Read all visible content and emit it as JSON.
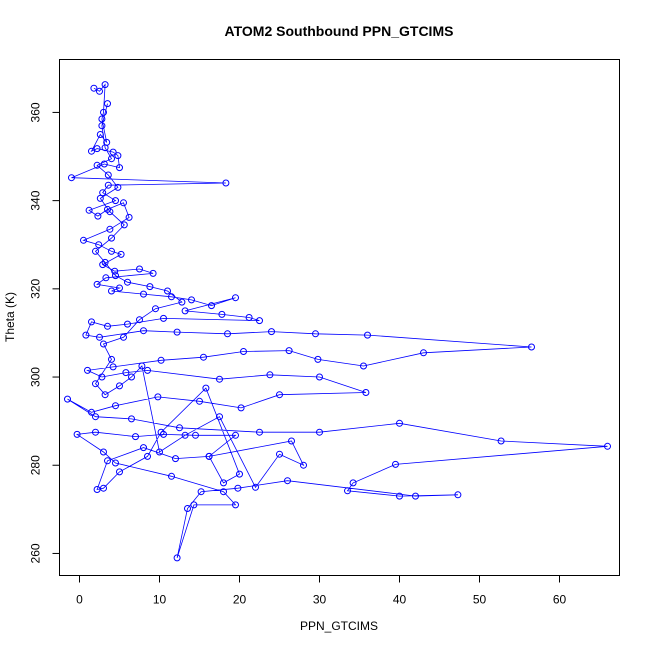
{
  "chart_data": {
    "type": "line",
    "title": "ATOM2 Southbound PPN_GTCIMS",
    "xlabel": "PPN_GTCIMS",
    "ylabel": "Theta (K)",
    "xlim": [
      -2.5,
      67.5
    ],
    "ylim": [
      255,
      372
    ],
    "x_ticks": [
      0,
      10,
      20,
      30,
      40,
      50,
      60
    ],
    "y_ticks": [
      260,
      280,
      300,
      320,
      340,
      360
    ],
    "grid": false,
    "series": [
      {
        "color": "#0000ff",
        "points": [
          [
            1.8,
            365.5
          ],
          [
            2.5,
            364.8
          ],
          [
            3.2,
            366.3
          ],
          [
            3.0,
            360.0
          ],
          [
            2.8,
            358.5
          ],
          [
            3.4,
            353.2
          ],
          [
            2.6,
            355.0
          ],
          [
            1.5,
            351.2
          ],
          [
            2.2,
            351.8
          ],
          [
            4.2,
            351.0
          ],
          [
            4.8,
            350.2
          ],
          [
            5.0,
            347.5
          ],
          [
            3.1,
            348.3
          ],
          [
            -1.0,
            345.2
          ],
          [
            18.3,
            344.0
          ],
          [
            3.6,
            343.5
          ],
          [
            2.9,
            341.8
          ],
          [
            4.5,
            340.0
          ],
          [
            1.2,
            337.8
          ],
          [
            2.3,
            336.5
          ],
          [
            3.5,
            338.0
          ],
          [
            5.5,
            339.5
          ],
          [
            6.2,
            336.2
          ],
          [
            3.8,
            333.5
          ],
          [
            0.5,
            331.0
          ],
          [
            2.4,
            330.0
          ],
          [
            4.0,
            328.5
          ],
          [
            5.2,
            327.8
          ],
          [
            2.9,
            325.5
          ],
          [
            4.4,
            324.0
          ],
          [
            7.5,
            324.5
          ],
          [
            9.2,
            323.5
          ],
          [
            3.3,
            322.5
          ],
          [
            2.2,
            321.0
          ],
          [
            5.0,
            320.2
          ],
          [
            4.0,
            319.5
          ],
          [
            8.0,
            318.8
          ],
          [
            11.5,
            318.2
          ],
          [
            14.0,
            317.5
          ],
          [
            16.5,
            316.2
          ],
          [
            19.5,
            318.0
          ],
          [
            13.2,
            315.0
          ],
          [
            17.8,
            314.2
          ],
          [
            21.2,
            313.5
          ],
          [
            22.5,
            312.8
          ],
          [
            10.5,
            313.3
          ],
          [
            6.0,
            312.0
          ],
          [
            3.5,
            311.5
          ],
          [
            1.5,
            312.5
          ],
          [
            0.8,
            309.5
          ],
          [
            2.5,
            309.0
          ],
          [
            8.0,
            310.5
          ],
          [
            12.2,
            310.2
          ],
          [
            18.5,
            309.8
          ],
          [
            24.0,
            310.3
          ],
          [
            29.5,
            309.8
          ],
          [
            36.0,
            309.5
          ],
          [
            56.5,
            306.8
          ],
          [
            43.0,
            305.5
          ],
          [
            35.5,
            302.5
          ],
          [
            29.8,
            304.0
          ],
          [
            26.2,
            306.0
          ],
          [
            20.5,
            305.8
          ],
          [
            15.5,
            304.5
          ],
          [
            10.2,
            303.8
          ],
          [
            4.2,
            302.3
          ],
          [
            1.0,
            301.5
          ],
          [
            2.8,
            300.0
          ],
          [
            5.8,
            301.0
          ],
          [
            8.5,
            301.5
          ],
          [
            17.5,
            299.5
          ],
          [
            23.8,
            300.5
          ],
          [
            30.0,
            300.0
          ],
          [
            35.8,
            296.5
          ],
          [
            25.0,
            296.0
          ],
          [
            20.2,
            293.0
          ],
          [
            15.0,
            294.5
          ],
          [
            9.8,
            295.5
          ],
          [
            4.5,
            293.5
          ],
          [
            1.5,
            292.0
          ],
          [
            -1.5,
            295.0
          ],
          [
            2.0,
            291.0
          ],
          [
            6.5,
            290.5
          ],
          [
            12.5,
            288.5
          ],
          [
            22.5,
            287.5
          ],
          [
            30.0,
            287.5
          ],
          [
            40.0,
            289.5
          ],
          [
            52.7,
            285.5
          ],
          [
            66.0,
            284.3
          ],
          [
            39.5,
            280.2
          ],
          [
            34.2,
            276.0
          ],
          [
            33.5,
            274.2
          ],
          [
            40.0,
            273.0
          ],
          [
            47.3,
            273.3
          ],
          [
            42.0,
            273.0
          ],
          [
            26.0,
            276.5
          ],
          [
            19.8,
            274.8
          ],
          [
            15.2,
            274.0
          ],
          [
            13.5,
            270.2
          ],
          [
            12.2,
            259.0
          ],
          [
            14.3,
            271.0
          ],
          [
            19.5,
            271.0
          ],
          [
            18.0,
            274.0
          ],
          [
            11.5,
            277.5
          ],
          [
            4.5,
            280.5
          ],
          [
            3.0,
            283.0
          ],
          [
            -0.3,
            287.0
          ],
          [
            2.0,
            287.5
          ],
          [
            7.0,
            286.5
          ],
          [
            10.5,
            287.0
          ],
          [
            14.5,
            286.8
          ],
          [
            19.5,
            286.8
          ],
          [
            16.2,
            282.0
          ],
          [
            12.0,
            281.5
          ],
          [
            8.0,
            284.0
          ],
          [
            3.5,
            281.0
          ],
          [
            2.2,
            274.5
          ],
          [
            3.0,
            274.8
          ],
          [
            5.0,
            278.5
          ],
          [
            8.5,
            282.0
          ],
          [
            10.2,
            287.5
          ],
          [
            15.8,
            297.5
          ],
          [
            20.0,
            278.0
          ],
          [
            18.0,
            276.0
          ],
          [
            16.2,
            282.0
          ],
          [
            26.5,
            285.5
          ],
          [
            28.0,
            280.0
          ],
          [
            25.0,
            282.5
          ],
          [
            22.0,
            275.0
          ],
          [
            17.5,
            291.0
          ],
          [
            13.2,
            286.8
          ],
          [
            10.0,
            283.0
          ],
          [
            7.8,
            302.5
          ],
          [
            6.5,
            300.0
          ],
          [
            5.0,
            298.0
          ],
          [
            3.2,
            296.0
          ],
          [
            2.0,
            298.5
          ],
          [
            4.0,
            304.0
          ],
          [
            3.0,
            307.5
          ],
          [
            5.5,
            309.0
          ],
          [
            7.5,
            313.0
          ],
          [
            9.5,
            315.5
          ],
          [
            12.8,
            317.0
          ],
          [
            11.0,
            319.5
          ],
          [
            8.8,
            320.5
          ],
          [
            6.0,
            321.5
          ],
          [
            4.5,
            323.0
          ],
          [
            3.2,
            326.0
          ],
          [
            2.0,
            328.5
          ],
          [
            4.0,
            331.5
          ],
          [
            5.6,
            334.5
          ],
          [
            3.8,
            337.5
          ],
          [
            2.6,
            340.5
          ],
          [
            4.8,
            343.0
          ],
          [
            3.6,
            345.8
          ],
          [
            2.2,
            348.0
          ],
          [
            4.0,
            349.5
          ],
          [
            3.2,
            352.0
          ],
          [
            2.8,
            357.0
          ],
          [
            3.5,
            362.0
          ]
        ]
      }
    ]
  }
}
